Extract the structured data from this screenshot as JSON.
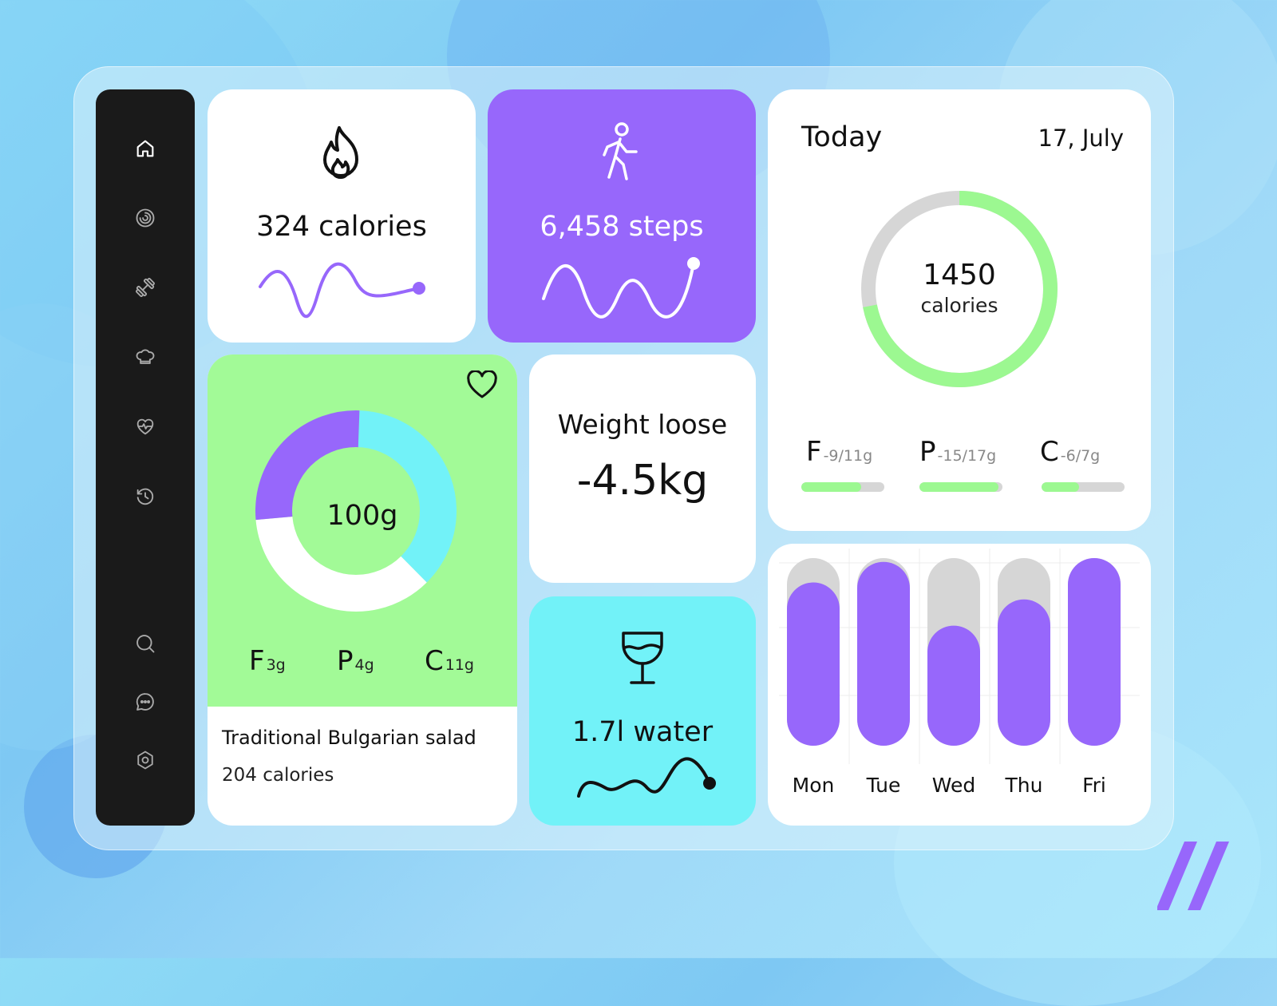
{
  "colors": {
    "purple": "#9767fb",
    "green": "#a2fa97",
    "cyan": "#72f2f8",
    "sidebar": "#1a1a1a",
    "track": "#d6d6d6"
  },
  "sidebar": {
    "top_items": [
      {
        "icon": "home-icon"
      },
      {
        "icon": "activity-ring-icon"
      },
      {
        "icon": "dumbbell-icon"
      },
      {
        "icon": "chef-hat-icon"
      },
      {
        "icon": "heart-pulse-icon"
      },
      {
        "icon": "history-icon"
      }
    ],
    "bottom_items": [
      {
        "icon": "search-icon"
      },
      {
        "icon": "chat-icon"
      },
      {
        "icon": "settings-icon"
      }
    ]
  },
  "calories_card": {
    "icon": "flame-icon",
    "value": "324 calories"
  },
  "steps_card": {
    "icon": "walking-person-icon",
    "value": "6,458 steps"
  },
  "today_card": {
    "title": "Today",
    "date": "17, July",
    "ring_value": "1450",
    "ring_unit": "calories",
    "ring_progress": 0.72,
    "macros": [
      {
        "letter": "F",
        "detail": "-9/11g",
        "progress": 0.72
      },
      {
        "letter": "P",
        "detail": "-15/17g",
        "progress": 0.95
      },
      {
        "letter": "C",
        "detail": "-6/7g",
        "progress": 0.45
      }
    ]
  },
  "salad_card": {
    "favorite_icon": "heart-icon",
    "donut_center": "100g",
    "donut_segments": [
      {
        "color": "#72f2f8",
        "share": 0.37
      },
      {
        "color": "#ffffff",
        "share": 0.36
      },
      {
        "color": "#9767fb",
        "share": 0.27
      }
    ],
    "macros": [
      {
        "letter": "F",
        "amount": "3g"
      },
      {
        "letter": "P",
        "amount": "4g"
      },
      {
        "letter": "C",
        "amount": "11g"
      }
    ],
    "name": "Traditional Bulgarian salad",
    "calories": "204 calories"
  },
  "weight_card": {
    "label": "Weight loose",
    "value": "-4.5kg"
  },
  "water_card": {
    "icon": "wine-glass-icon",
    "value": "1.7l water"
  },
  "weekly_chart": {
    "days": [
      "Mon",
      "Tue",
      "Wed",
      "Thu",
      "Fri"
    ],
    "progress": [
      0.87,
      0.98,
      0.64,
      0.78,
      1.0
    ]
  },
  "brand": {
    "icon": "brand-slashes-icon"
  }
}
